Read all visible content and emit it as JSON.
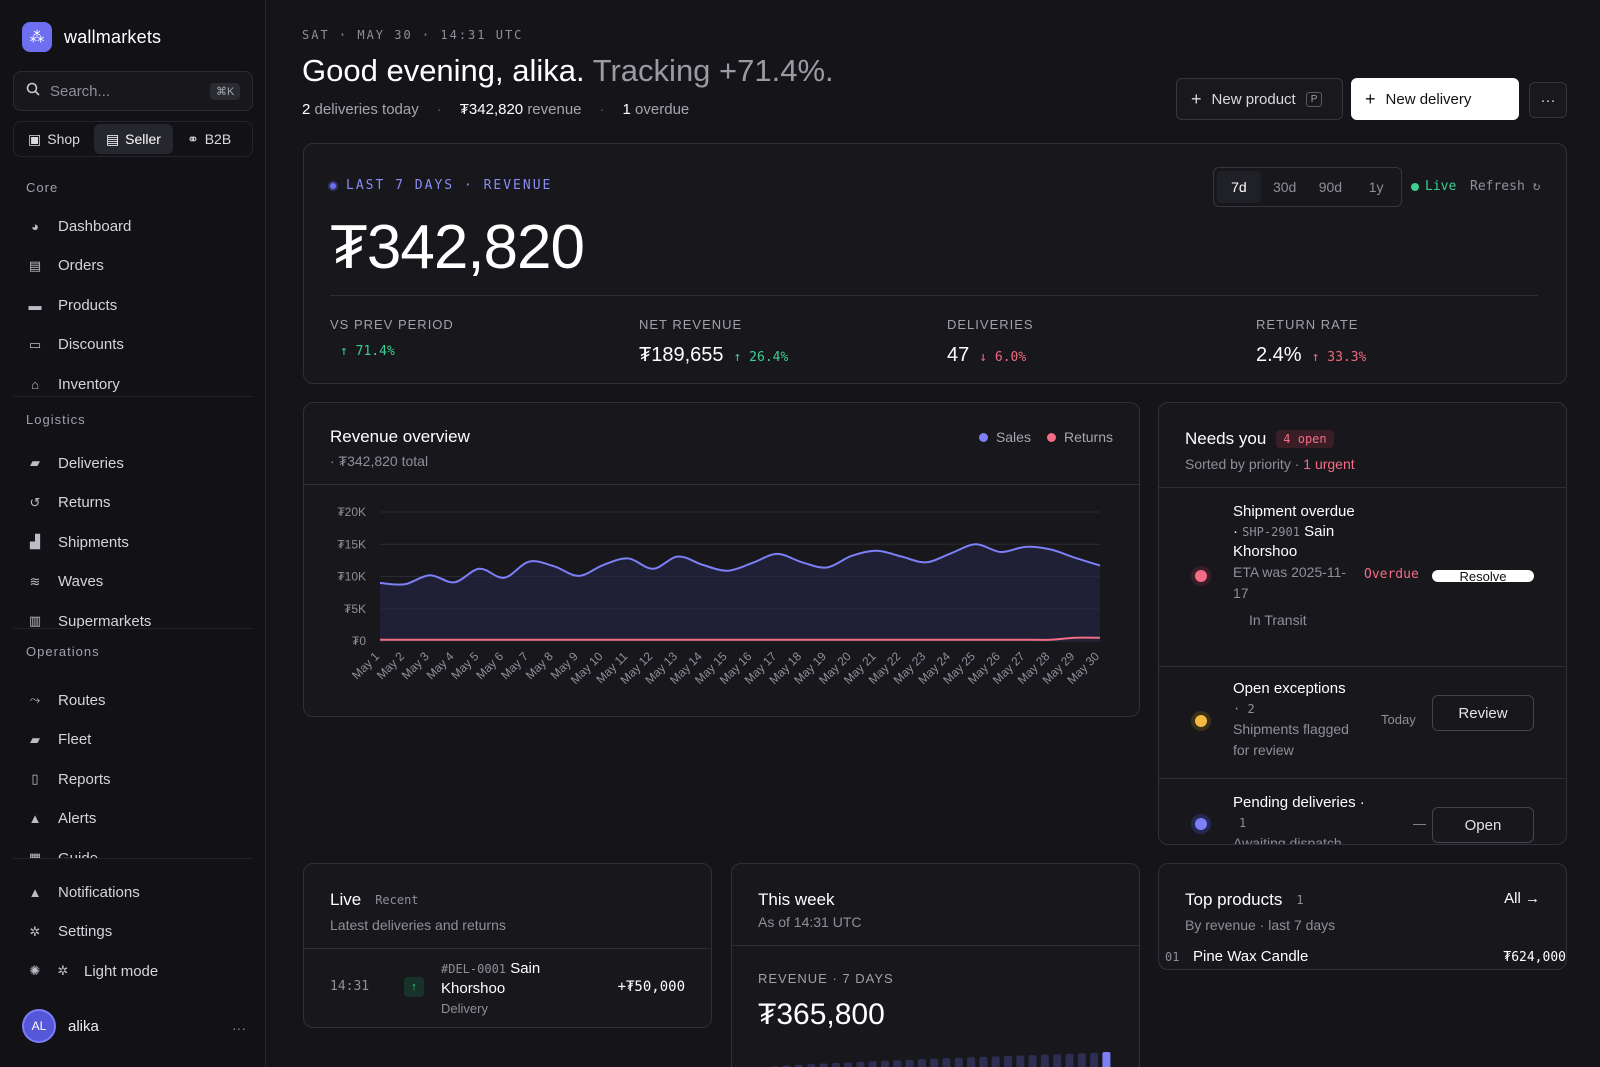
{
  "brand": {
    "name": "wallmarkets"
  },
  "search": {
    "placeholder": "Search...",
    "shortcut": "⌘K"
  },
  "modes": [
    {
      "label": "Shop",
      "icon": "shopping-bag-icon",
      "active": false
    },
    {
      "label": "Seller",
      "icon": "briefcase-icon",
      "active": true
    },
    {
      "label": "B2B",
      "icon": "handshake-icon",
      "active": false
    }
  ],
  "nav": {
    "core_label": "Core",
    "core": [
      {
        "label": "Dashboard",
        "icon": "dashboard-icon"
      },
      {
        "label": "Orders",
        "icon": "clipboard-icon"
      },
      {
        "label": "Products",
        "icon": "box-icon"
      },
      {
        "label": "Discounts",
        "icon": "ticket-icon"
      },
      {
        "label": "Inventory",
        "icon": "warehouse-icon"
      }
    ],
    "logistics_label": "Logistics",
    "logistics": [
      {
        "label": "Deliveries",
        "icon": "truck-icon"
      },
      {
        "label": "Returns",
        "icon": "undo-icon"
      },
      {
        "label": "Shipments",
        "icon": "boxes-icon"
      },
      {
        "label": "Waves",
        "icon": "layers-icon"
      },
      {
        "label": "Supermarkets",
        "icon": "building-icon"
      }
    ],
    "operations_label": "Operations",
    "operations": [
      {
        "label": "Routes",
        "icon": "route-icon"
      },
      {
        "label": "Fleet",
        "icon": "van-icon"
      },
      {
        "label": "Reports",
        "icon": "file-icon"
      },
      {
        "label": "Alerts",
        "icon": "bell-icon"
      },
      {
        "label": "Guide",
        "icon": "book-icon"
      }
    ],
    "footer": [
      {
        "label": "Notifications",
        "icon": "bell-icon"
      },
      {
        "label": "Settings",
        "icon": "gear-icon"
      },
      {
        "label": "Light mode",
        "icon": "sun-icon"
      }
    ]
  },
  "user": {
    "initials": "AL",
    "name": "alika",
    "more": "···"
  },
  "header": {
    "datetime": "SAT · MAY 30 · 14:31 UTC",
    "greeting": "Good evening, alika.",
    "tracking": "Tracking +71.4%.",
    "summary": [
      {
        "value": "2",
        "text": "deliveries today"
      },
      {
        "value": "₮342,820",
        "text": "revenue"
      },
      {
        "value": "1",
        "text": "overdue"
      }
    ],
    "new_product": "New product",
    "new_product_key": "P",
    "new_delivery": "New delivery",
    "more": "···"
  },
  "hero": {
    "label": "LAST 7 DAYS · REVENUE",
    "value": "₮342,820",
    "ranges": [
      {
        "label": "7d",
        "active": true
      },
      {
        "label": "30d",
        "active": false
      },
      {
        "label": "90d",
        "active": false
      },
      {
        "label": "1y",
        "active": false
      }
    ],
    "live": "Live",
    "refresh": "Refresh ↻",
    "kpis": [
      {
        "label": "VS PREV PERIOD",
        "value": "",
        "delta": "↑ 71.4%",
        "dir": "up"
      },
      {
        "label": "NET REVENUE",
        "value": "₮189,655",
        "delta": "↑ 26.4%",
        "dir": "up"
      },
      {
        "label": "DELIVERIES",
        "value": "47",
        "delta": "↓ 6.0%",
        "dir": "down"
      },
      {
        "label": "RETURN RATE",
        "value": "2.4%",
        "delta": "↑ 33.3%",
        "dir": "down"
      }
    ]
  },
  "revenue_overview": {
    "title": "Revenue overview",
    "subtitle": "· ₮342,820 total",
    "legend": [
      {
        "name": "Sales",
        "color": "#7c7ff5"
      },
      {
        "name": "Returns",
        "color": "#f36d86"
      }
    ]
  },
  "chart_data": {
    "type": "area",
    "x": [
      "May 1",
      "May 2",
      "May 3",
      "May 4",
      "May 5",
      "May 6",
      "May 7",
      "May 8",
      "May 9",
      "May 10",
      "May 11",
      "May 12",
      "May 13",
      "May 14",
      "May 15",
      "May 16",
      "May 17",
      "May 18",
      "May 19",
      "May 20",
      "May 21",
      "May 22",
      "May 23",
      "May 24",
      "May 25",
      "May 26",
      "May 27",
      "May 28",
      "May 29",
      "May 30"
    ],
    "series": [
      {
        "name": "Sales",
        "color": "#7c7ff5",
        "values": [
          9000,
          8800,
          10200,
          9100,
          11200,
          9800,
          12300,
          11600,
          10100,
          11800,
          12800,
          11200,
          13100,
          11800,
          10900,
          12100,
          13500,
          12200,
          11400,
          13200,
          14000,
          13100,
          12200,
          13600,
          15000,
          13800,
          14600,
          14200,
          12900,
          11700
        ]
      },
      {
        "name": "Returns",
        "color": "#f36d86",
        "values": [
          200,
          200,
          200,
          200,
          200,
          200,
          200,
          200,
          200,
          200,
          200,
          200,
          200,
          200,
          200,
          200,
          200,
          200,
          200,
          200,
          200,
          200,
          200,
          200,
          200,
          200,
          200,
          200,
          500,
          500
        ]
      }
    ],
    "yticks": [
      "₮0",
      "₮5K",
      "₮10K",
      "₮15K",
      "₮20K"
    ],
    "ylim": [
      0,
      20000
    ],
    "grid": true
  },
  "needs": {
    "title": "Needs you",
    "badge": "4 open",
    "sub": "Sorted by priority ·",
    "urgent": "1 urgent",
    "items": [
      {
        "title": "Shipment overdue ·",
        "ref": "SHP-2901",
        "name": "Sain Khorshoo",
        "desc": "ETA was 2025-11-17",
        "extra": "In Transit",
        "status": "Overdue",
        "action": "Resolve",
        "color": "#f36d86"
      },
      {
        "title": "Open exceptions",
        "ref": "· 2",
        "desc": "Shipments flagged for review",
        "status": "Today",
        "action": "Review",
        "color": "#f5b942"
      },
      {
        "title": "Pending deliveries ·",
        "ref": "1",
        "desc": "Awaiting dispatch",
        "status": "—",
        "action": "Open",
        "color": "#7c7ff5"
      }
    ]
  },
  "live_card": {
    "title": "Live",
    "tag": "Recent",
    "sub": "Latest deliveries and returns",
    "rows": [
      {
        "time": "14:31",
        "ref": "#DEL-0001",
        "name": "Sain Khorshoo",
        "type": "Delivery",
        "amount": "+₮50,000"
      }
    ]
  },
  "this_week": {
    "title": "This week",
    "sub": "As of 14:31 UTC",
    "label": "REVENUE · 7 DAYS",
    "value": "₮365,800",
    "bars": [
      0.3,
      0.35,
      0.4,
      0.42,
      0.45,
      0.48,
      0.5,
      0.52,
      0.55,
      0.58,
      0.6,
      0.62,
      0.65,
      0.68,
      0.7,
      0.72,
      0.74,
      0.76,
      0.78,
      0.8,
      0.82,
      0.84,
      0.86,
      0.88,
      0.9,
      0.92,
      0.94,
      0.96,
      1.0
    ]
  },
  "top_products": {
    "title": "Top products",
    "count": "1",
    "all": "All →",
    "sub": "By revenue · last 7 days",
    "rows": [
      {
        "rank": "01",
        "name": "Pine Wax Candle",
        "amount": "₮624,000"
      }
    ]
  }
}
